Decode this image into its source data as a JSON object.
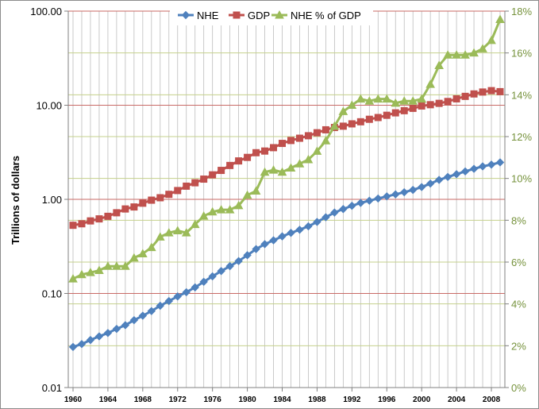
{
  "chart_data": {
    "type": "line",
    "title": "",
    "ylabel": "Trillions of dollars",
    "y2label": "",
    "xlabel": "",
    "yscale": "log",
    "ylim": [
      0.01,
      100
    ],
    "y2lim": [
      0,
      18
    ],
    "xlim": [
      1960,
      2009
    ],
    "x_tick_labels": [
      "1960",
      "1964",
      "1968",
      "1972",
      "1976",
      "1980",
      "1984",
      "1988",
      "1992",
      "1996",
      "2000",
      "2004",
      "2008"
    ],
    "y_tick_labels": [
      "0.01",
      "0.10",
      "1.00",
      "10.00",
      "100.00"
    ],
    "y2_tick_labels": [
      "0%",
      "2%",
      "4%",
      "6%",
      "8%",
      "10%",
      "12%",
      "14%",
      "16%",
      "18%"
    ],
    "legend_position": "top-center",
    "grid": true,
    "x": [
      1960,
      1961,
      1962,
      1963,
      1964,
      1965,
      1966,
      1967,
      1968,
      1969,
      1970,
      1971,
      1972,
      1973,
      1974,
      1975,
      1976,
      1977,
      1978,
      1979,
      1980,
      1981,
      1982,
      1983,
      1984,
      1985,
      1986,
      1987,
      1988,
      1989,
      1990,
      1991,
      1992,
      1993,
      1994,
      1995,
      1996,
      1997,
      1998,
      1999,
      2000,
      2001,
      2002,
      2003,
      2004,
      2005,
      2006,
      2007,
      2008,
      2009
    ],
    "series": [
      {
        "name": "NHE",
        "axis": "left",
        "color": "#4f81bd",
        "marker": "diamond",
        "values": [
          0.027,
          0.029,
          0.032,
          0.035,
          0.038,
          0.042,
          0.046,
          0.052,
          0.058,
          0.065,
          0.074,
          0.083,
          0.093,
          0.103,
          0.116,
          0.133,
          0.152,
          0.173,
          0.195,
          0.221,
          0.255,
          0.296,
          0.334,
          0.367,
          0.404,
          0.44,
          0.475,
          0.517,
          0.575,
          0.645,
          0.724,
          0.788,
          0.854,
          0.916,
          0.967,
          1.021,
          1.075,
          1.13,
          1.19,
          1.26,
          1.35,
          1.47,
          1.61,
          1.73,
          1.85,
          1.98,
          2.11,
          2.24,
          2.34,
          2.47
        ]
      },
      {
        "name": "GDP",
        "axis": "left",
        "color": "#c0504d",
        "marker": "square",
        "values": [
          0.53,
          0.55,
          0.59,
          0.62,
          0.66,
          0.72,
          0.79,
          0.83,
          0.91,
          0.98,
          1.04,
          1.13,
          1.24,
          1.38,
          1.5,
          1.64,
          1.82,
          2.03,
          2.29,
          2.56,
          2.79,
          3.13,
          3.26,
          3.54,
          3.93,
          4.22,
          4.46,
          4.74,
          5.1,
          5.48,
          5.8,
          5.99,
          6.34,
          6.67,
          7.09,
          7.4,
          7.82,
          8.3,
          8.75,
          9.27,
          9.82,
          10.13,
          10.47,
          10.96,
          11.69,
          12.42,
          13.18,
          13.81,
          14.29,
          13.94
        ]
      },
      {
        "name": "NHE % of GDP",
        "axis": "right",
        "color": "#9bbb59",
        "marker": "triangle",
        "values": [
          5.2,
          5.4,
          5.5,
          5.6,
          5.8,
          5.8,
          5.8,
          6.2,
          6.4,
          6.7,
          7.2,
          7.4,
          7.5,
          7.4,
          7.8,
          8.2,
          8.4,
          8.5,
          8.5,
          8.7,
          9.2,
          9.4,
          10.3,
          10.4,
          10.3,
          10.5,
          10.7,
          10.9,
          11.3,
          11.8,
          12.5,
          13.2,
          13.5,
          13.8,
          13.7,
          13.8,
          13.8,
          13.6,
          13.7,
          13.7,
          13.8,
          14.5,
          15.4,
          15.9,
          15.9,
          15.9,
          16.0,
          16.2,
          16.6,
          17.6
        ]
      }
    ]
  }
}
